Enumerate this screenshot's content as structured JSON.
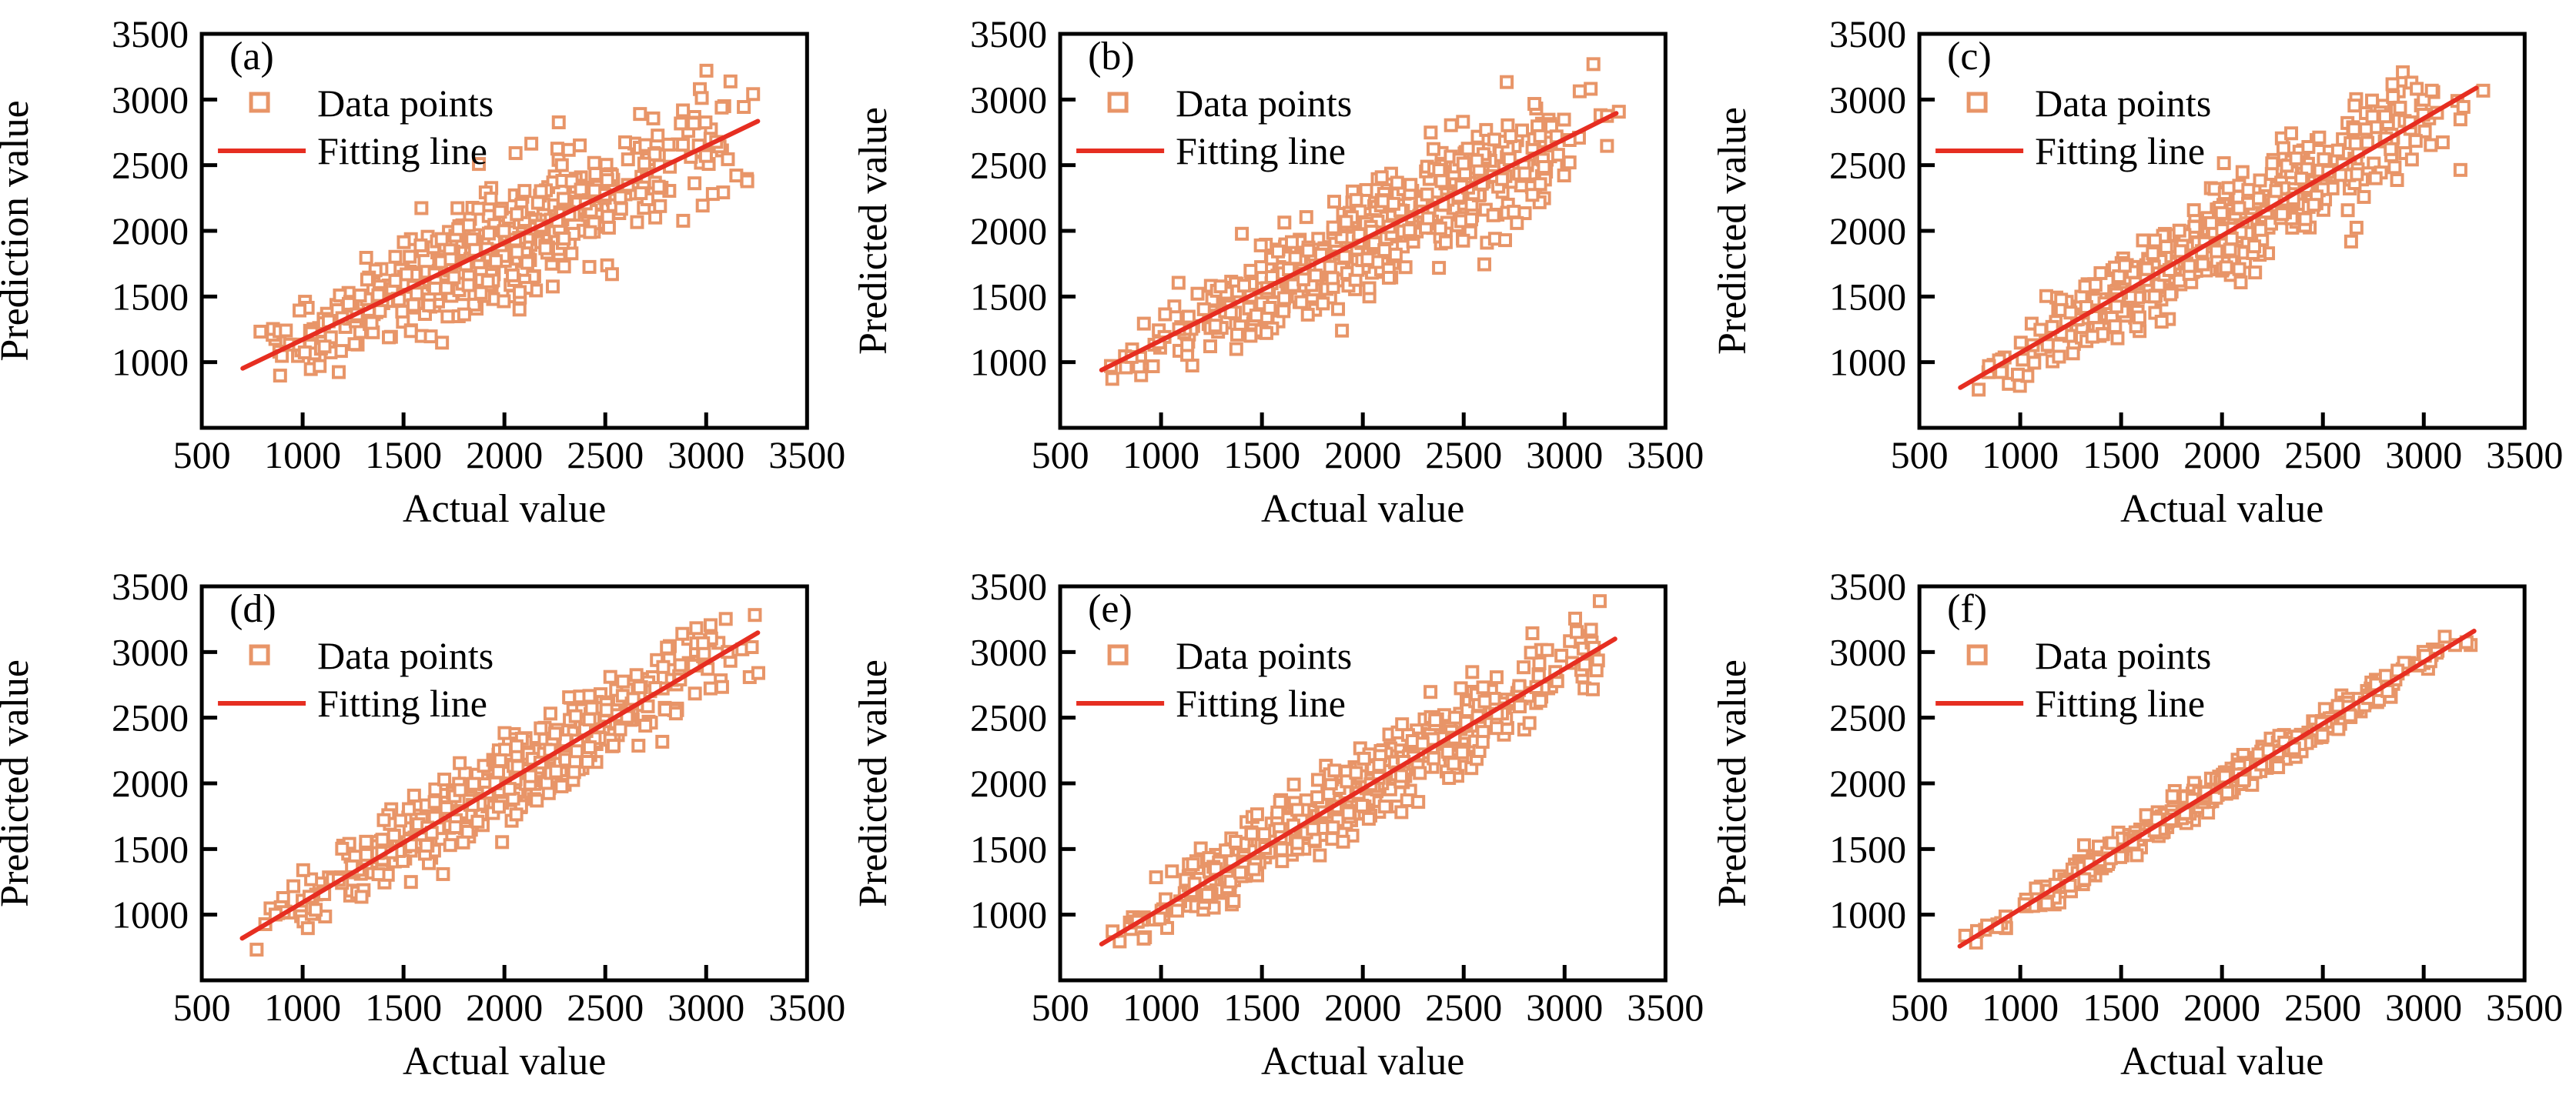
{
  "figure": {
    "layout": "2x3",
    "colors": {
      "frame": "#000000",
      "tick": "#000000",
      "text": "#000000",
      "marker": "#E89568",
      "fit_line": "#E62E21",
      "background": "#ffffff"
    },
    "marker_shape": "open-square"
  },
  "chart_data": [
    {
      "type": "scatter",
      "tag": "(a)",
      "xlabel": "Actual value",
      "ylabel": "Prediction value",
      "xlim": [
        500,
        3500
      ],
      "ylim": [
        500,
        3500
      ],
      "x_ticks": [
        500,
        1000,
        1500,
        2000,
        2500,
        3000,
        3500
      ],
      "y_ticks": [
        1000,
        1500,
        2000,
        2500,
        3000,
        3500
      ],
      "legend": {
        "items": [
          {
            "label": "Data points"
          },
          {
            "label": "Fitting line"
          }
        ]
      },
      "fit_line": {
        "x1": 703,
        "y1": 953,
        "x2": 3256,
        "y2": 2835
      },
      "scatter_params": {
        "n": 540,
        "seed": 11,
        "x_min": 690,
        "x_max": 3310,
        "noise_sd": 205,
        "noise_at_start": 0.55,
        "noise_growth": 0.95
      }
    },
    {
      "type": "scatter",
      "tag": "(b)",
      "xlabel": "Actual value",
      "ylabel": "Predicted value",
      "xlim": [
        500,
        3500
      ],
      "ylim": [
        500,
        3500
      ],
      "x_ticks": [
        500,
        1000,
        1500,
        2000,
        2500,
        3000,
        3500
      ],
      "y_ticks": [
        1000,
        1500,
        2000,
        2500,
        3000,
        3500
      ],
      "legend": {
        "items": [
          {
            "label": "Data points"
          },
          {
            "label": "Fitting line"
          }
        ]
      },
      "fit_line": {
        "x1": 705,
        "y1": 940,
        "x2": 3256,
        "y2": 2895
      },
      "scatter_params": {
        "n": 540,
        "seed": 22,
        "x_min": 690,
        "x_max": 3310,
        "noise_sd": 185,
        "noise_at_start": 0.6,
        "noise_growth": 0.85
      }
    },
    {
      "type": "scatter",
      "tag": "(c)",
      "xlabel": "Actual value",
      "ylabel": "Predicted value",
      "xlim": [
        500,
        3500
      ],
      "ylim": [
        500,
        3500
      ],
      "x_ticks": [
        500,
        1000,
        1500,
        2000,
        2500,
        3000,
        3500
      ],
      "y_ticks": [
        1000,
        1500,
        2000,
        2500,
        3000,
        3500
      ],
      "legend": {
        "items": [
          {
            "label": "Data points"
          },
          {
            "label": "Fitting line"
          }
        ]
      },
      "fit_line": {
        "x1": 703,
        "y1": 806,
        "x2": 3260,
        "y2": 3088
      },
      "scatter_params": {
        "n": 540,
        "seed": 33,
        "x_min": 690,
        "x_max": 3310,
        "noise_sd": 175,
        "noise_at_start": 0.7,
        "noise_growth": 0.55
      }
    },
    {
      "type": "scatter",
      "tag": "(d)",
      "xlabel": "Actual value",
      "ylabel": "Predicted value",
      "xlim": [
        500,
        3500
      ],
      "ylim": [
        500,
        3500
      ],
      "x_ticks": [
        500,
        1000,
        1500,
        2000,
        2500,
        3000,
        3500
      ],
      "y_ticks": [
        1000,
        1500,
        2000,
        2500,
        3000,
        3500
      ],
      "legend": {
        "items": [
          {
            "label": "Data points"
          },
          {
            "label": "Fitting line"
          }
        ]
      },
      "fit_line": {
        "x1": 700,
        "y1": 820,
        "x2": 3256,
        "y2": 3147
      },
      "scatter_params": {
        "n": 520,
        "seed": 44,
        "x_min": 690,
        "x_max": 3310,
        "noise_sd": 150,
        "noise_at_start": 0.7,
        "noise_growth": 0.45
      }
    },
    {
      "type": "scatter",
      "tag": "(e)",
      "xlabel": "Actual value",
      "ylabel": "Predicted value",
      "xlim": [
        500,
        3500
      ],
      "ylim": [
        500,
        3500
      ],
      "x_ticks": [
        500,
        1000,
        1500,
        2000,
        2500,
        3000,
        3500
      ],
      "y_ticks": [
        1000,
        1500,
        2000,
        2500,
        3000,
        3500
      ],
      "legend": {
        "items": [
          {
            "label": "Data points"
          },
          {
            "label": "Fitting line"
          }
        ]
      },
      "fit_line": {
        "x1": 705,
        "y1": 776,
        "x2": 3250,
        "y2": 3100
      },
      "scatter_params": {
        "n": 540,
        "seed": 55,
        "x_min": 690,
        "x_max": 3310,
        "noise_sd": 148,
        "noise_at_start": 0.7,
        "noise_growth": 0.45
      }
    },
    {
      "type": "scatter",
      "tag": "(f)",
      "xlabel": "Actual value",
      "ylabel": "Predicted value",
      "xlim": [
        500,
        3500
      ],
      "ylim": [
        500,
        3500
      ],
      "x_ticks": [
        500,
        1000,
        1500,
        2000,
        2500,
        3000,
        3500
      ],
      "y_ticks": [
        1000,
        1500,
        2000,
        2500,
        3000,
        3500
      ],
      "legend": {
        "items": [
          {
            "label": "Data points"
          },
          {
            "label": "Fitting line"
          }
        ]
      },
      "fit_line": {
        "x1": 700,
        "y1": 760,
        "x2": 3250,
        "y2": 3160
      },
      "scatter_params": {
        "n": 500,
        "seed": 66,
        "x_min": 690,
        "x_max": 3310,
        "noise_sd": 52,
        "noise_at_start": 1.0,
        "noise_growth": 0.0
      }
    }
  ]
}
